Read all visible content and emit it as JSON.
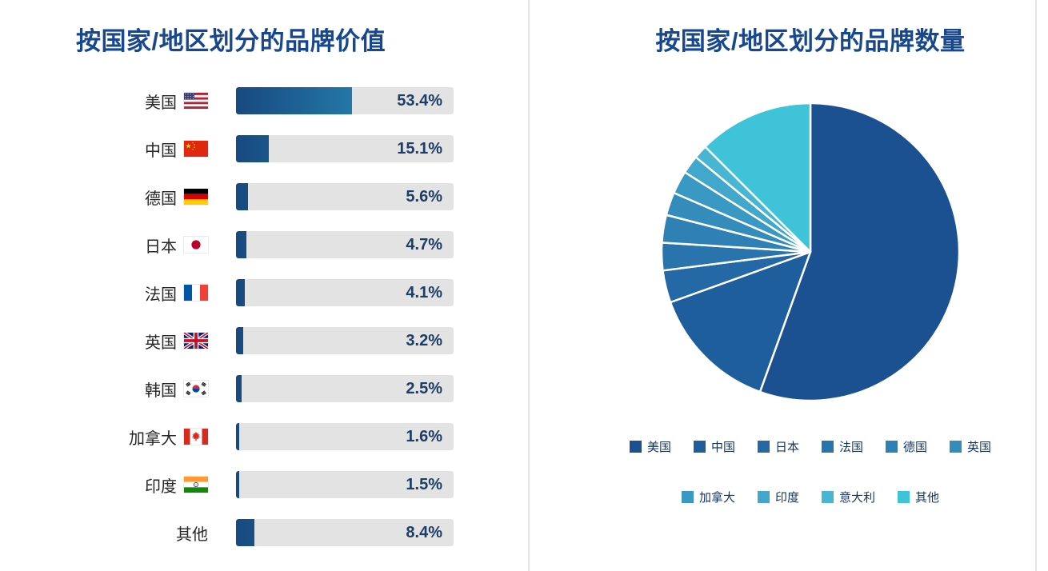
{
  "left_chart": {
    "title": "按国家/地区划分的品牌价值",
    "rows": [
      {
        "label": "美国",
        "flag": "us",
        "value": 53.4,
        "display": "53.4%"
      },
      {
        "label": "中国",
        "flag": "cn",
        "value": 15.1,
        "display": "15.1%"
      },
      {
        "label": "德国",
        "flag": "de",
        "value": 5.6,
        "display": "5.6%"
      },
      {
        "label": "日本",
        "flag": "jp",
        "value": 4.7,
        "display": "4.7%"
      },
      {
        "label": "法国",
        "flag": "fr",
        "value": 4.1,
        "display": "4.1%"
      },
      {
        "label": "英国",
        "flag": "gb",
        "value": 3.2,
        "display": "3.2%"
      },
      {
        "label": "韩国",
        "flag": "kr",
        "value": 2.5,
        "display": "2.5%"
      },
      {
        "label": "加拿大",
        "flag": "ca",
        "value": 1.6,
        "display": "1.6%"
      },
      {
        "label": "印度",
        "flag": "in",
        "value": 1.5,
        "display": "1.5%"
      },
      {
        "label": "其他",
        "flag": null,
        "value": 8.4,
        "display": "8.4%"
      }
    ]
  },
  "right_chart": {
    "title": "按国家/地区划分的品牌数量",
    "legend": [
      "美国",
      "中国",
      "日本",
      "法国",
      "德国",
      "英国",
      "加拿大",
      "印度",
      "意大利",
      "其他"
    ]
  },
  "chart_data": [
    {
      "type": "bar",
      "orientation": "horizontal",
      "title": "按国家/地区划分的品牌价值",
      "categories": [
        "美国",
        "中国",
        "德国",
        "日本",
        "法国",
        "英国",
        "韩国",
        "加拿大",
        "印度",
        "其他"
      ],
      "values": [
        53.4,
        15.1,
        5.6,
        4.7,
        4.1,
        3.2,
        2.5,
        1.6,
        1.5,
        8.4
      ],
      "value_labels": [
        "53.4%",
        "15.1%",
        "5.6%",
        "4.7%",
        "4.1%",
        "3.2%",
        "2.5%",
        "1.6%",
        "1.5%",
        "8.4%"
      ],
      "unit": "%",
      "xlim": [
        0,
        100
      ],
      "grid": false,
      "bar_gradient": [
        "#17497f",
        "#2f9fca"
      ],
      "track_color": "#e3e3e3"
    },
    {
      "type": "pie",
      "title": "按国家/地区划分的品牌数量",
      "categories": [
        "美国",
        "中国",
        "日本",
        "法国",
        "德国",
        "英国",
        "加拿大",
        "印度",
        "意大利",
        "其他"
      ],
      "values": [
        55.5,
        14.0,
        3.5,
        3.0,
        3.0,
        2.5,
        2.5,
        2.0,
        1.5,
        12.5
      ],
      "colors": [
        "#1c5191",
        "#1f5e9d",
        "#2469a6",
        "#2a74ad",
        "#2f80b4",
        "#348cbb",
        "#3a99c3",
        "#41a7cb",
        "#48b5d2",
        "#3fc3d8"
      ],
      "start_angle_deg": 0,
      "direction": "clockwise",
      "legend_position": "bottom",
      "legend_rows": [
        [
          "美国",
          "中国",
          "日本",
          "法国",
          "德国",
          "英国"
        ],
        [
          "加拿大",
          "印度",
          "意大利",
          "其他"
        ]
      ]
    }
  ],
  "colors": {
    "title": "#17478c",
    "bar_value_label": "#1c3e66",
    "bar_label": "#262626",
    "legend_text": "#15345f",
    "track": "#e3e3e3",
    "divider": "#e5e5e5",
    "background": "#ffffff"
  }
}
